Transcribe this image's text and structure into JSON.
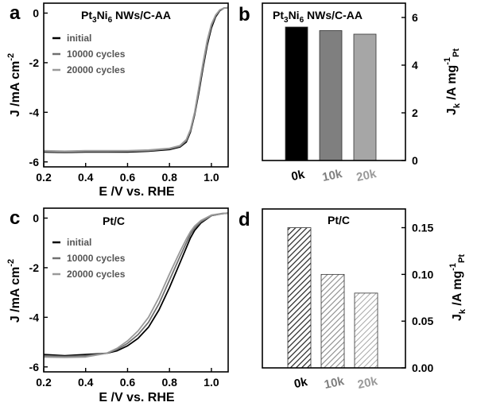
{
  "chart_data": [
    {
      "panel": "a",
      "type": "line",
      "title": "Pt3Ni6 NWs/C-AA",
      "xlabel": "E /V vs. RHE",
      "ylabel": "J /mA cm-2",
      "xlim": [
        0.2,
        1.08
      ],
      "ylim": [
        -6.2,
        0.4
      ],
      "xticks": [
        0.2,
        0.4,
        0.6,
        0.8,
        1.0
      ],
      "yticks": [
        0,
        -2,
        -4,
        -6
      ],
      "x": [
        0.2,
        0.3,
        0.4,
        0.5,
        0.6,
        0.7,
        0.8,
        0.85,
        0.88,
        0.9,
        0.92,
        0.94,
        0.96,
        0.98,
        1.0,
        1.02,
        1.04,
        1.06,
        1.08
      ],
      "series": [
        {
          "name": "initial",
          "color": "#000000",
          "values": [
            -5.6,
            -5.62,
            -5.6,
            -5.6,
            -5.6,
            -5.57,
            -5.5,
            -5.4,
            -5.2,
            -4.8,
            -4.1,
            -3.2,
            -2.2,
            -1.3,
            -0.6,
            -0.15,
            0.1,
            0.2,
            0.22
          ]
        },
        {
          "name": "10000 cycles",
          "color": "#707070",
          "values": [
            -5.58,
            -5.6,
            -5.58,
            -5.58,
            -5.57,
            -5.55,
            -5.47,
            -5.37,
            -5.15,
            -4.75,
            -4.05,
            -3.1,
            -2.1,
            -1.2,
            -0.5,
            -0.1,
            0.12,
            0.2,
            0.22
          ]
        },
        {
          "name": "20000 cycles",
          "color": "#9a9a9a",
          "values": [
            -5.55,
            -5.57,
            -5.55,
            -5.55,
            -5.55,
            -5.52,
            -5.45,
            -5.34,
            -5.1,
            -4.7,
            -4.0,
            -3.0,
            -2.0,
            -1.1,
            -0.45,
            -0.08,
            0.13,
            0.2,
            0.22
          ]
        }
      ]
    },
    {
      "panel": "b",
      "type": "bar",
      "title": "Pt3Ni6 NWs/C-AA",
      "ylabel": "Jk /A mgPt-1",
      "categories": [
        "0k",
        "10k",
        "20k"
      ],
      "category_colors": [
        "#000000",
        "#7f7f7f",
        "#9a9a9a"
      ],
      "values": [
        5.6,
        5.45,
        5.3
      ],
      "fills": [
        "#000000",
        "#7f7f7f",
        "#a6a6a6"
      ],
      "ylim": [
        0,
        6.6
      ],
      "yticks": [
        0,
        2,
        4,
        6
      ]
    },
    {
      "panel": "c",
      "type": "line",
      "title": "Pt/C",
      "xlabel": "E /V vs. RHE",
      "ylabel": "J /mA cm-2",
      "xlim": [
        0.2,
        1.08
      ],
      "ylim": [
        -6.2,
        0.4
      ],
      "xticks": [
        0.2,
        0.4,
        0.6,
        0.8,
        1.0
      ],
      "yticks": [
        0,
        -2,
        -4,
        -6
      ],
      "x": [
        0.2,
        0.3,
        0.4,
        0.5,
        0.55,
        0.6,
        0.65,
        0.7,
        0.75,
        0.8,
        0.85,
        0.88,
        0.9,
        0.92,
        0.95,
        1.0,
        1.05,
        1.08
      ],
      "series": [
        {
          "name": "initial",
          "color": "#000000",
          "values": [
            -5.5,
            -5.55,
            -5.5,
            -5.45,
            -5.35,
            -5.15,
            -4.85,
            -4.4,
            -3.7,
            -2.8,
            -1.8,
            -1.2,
            -0.8,
            -0.5,
            -0.2,
            0.1,
            0.18,
            0.2
          ]
        },
        {
          "name": "10000 cycles",
          "color": "#707070",
          "values": [
            -5.55,
            -5.58,
            -5.55,
            -5.45,
            -5.3,
            -5.05,
            -4.7,
            -4.2,
            -3.45,
            -2.5,
            -1.55,
            -1.0,
            -0.65,
            -0.4,
            -0.15,
            0.1,
            0.18,
            0.2
          ]
        },
        {
          "name": "20000 cycles",
          "color": "#9a9a9a",
          "values": [
            -5.6,
            -5.62,
            -5.6,
            -5.45,
            -5.25,
            -4.95,
            -4.55,
            -4.0,
            -3.2,
            -2.25,
            -1.35,
            -0.85,
            -0.55,
            -0.32,
            -0.1,
            0.12,
            0.19,
            0.2
          ]
        }
      ]
    },
    {
      "panel": "d",
      "type": "bar",
      "title": "Pt/C",
      "ylabel": "Jk /A mgPt-1",
      "categories": [
        "0k",
        "10k",
        "20k"
      ],
      "category_colors": [
        "#000000",
        "#7f7f7f",
        "#9a9a9a"
      ],
      "values": [
        0.15,
        0.1,
        0.08
      ],
      "ylim": [
        0,
        0.17
      ],
      "yticks": [
        0.0,
        0.05,
        0.1,
        0.15
      ],
      "ytick_labels": [
        "0.00",
        "0.05",
        "0.10",
        "0.15"
      ]
    }
  ]
}
